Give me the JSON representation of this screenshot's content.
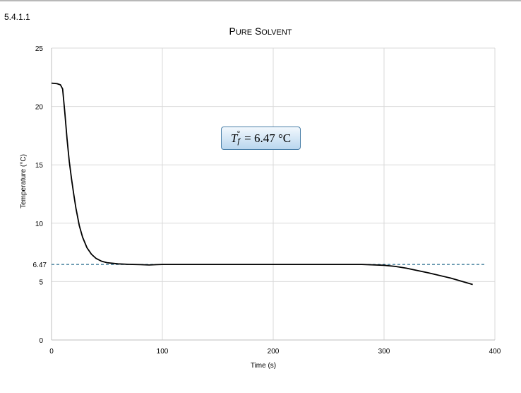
{
  "section_number": "5.4.1.1",
  "annotation": {
    "symbol": "T",
    "subscript": "f",
    "degree": "°",
    "rest": "= 6.47 °C"
  },
  "chart_data": {
    "type": "line",
    "title": "Pure Solvent",
    "xlabel": "Time (s)",
    "ylabel": "Temperature (°C)",
    "xlim": [
      0,
      400
    ],
    "ylim": [
      0,
      25
    ],
    "x_ticks": [
      0,
      100,
      200,
      300,
      400
    ],
    "y_ticks": [
      0,
      5,
      10,
      15,
      20,
      25
    ],
    "y_extra_tick": {
      "label": "6.47",
      "value": 6.47
    },
    "grid": true,
    "series": [
      {
        "color": "#000000",
        "x": [
          0,
          5,
          8,
          10,
          12,
          14,
          16,
          18,
          20,
          22,
          25,
          28,
          32,
          36,
          40,
          45,
          50,
          60,
          70,
          80,
          88,
          95,
          100,
          150,
          200,
          250,
          280,
          300,
          310,
          320,
          340,
          360,
          380
        ],
        "y": [
          22.0,
          21.95,
          21.85,
          21.5,
          19.5,
          17.2,
          15.3,
          13.8,
          12.5,
          11.3,
          9.8,
          8.8,
          7.9,
          7.35,
          7.0,
          6.75,
          6.62,
          6.52,
          6.48,
          6.45,
          6.42,
          6.45,
          6.47,
          6.47,
          6.47,
          6.47,
          6.47,
          6.4,
          6.3,
          6.15,
          5.75,
          5.3,
          4.75
        ]
      }
    ],
    "reference_line": {
      "y": 6.47,
      "style": "dashed",
      "color": "#2a6f8f"
    }
  }
}
